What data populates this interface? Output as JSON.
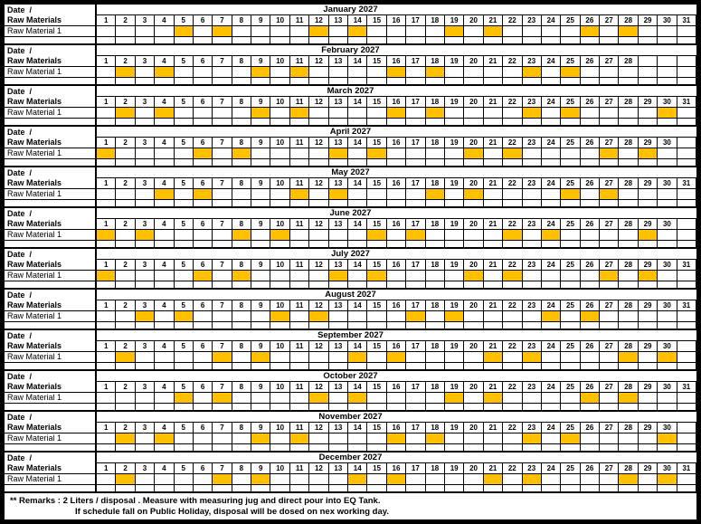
{
  "highlight_color": "#FFC000",
  "labels": {
    "date_label": "Date  /",
    "raw_materials_label": "Raw Materials",
    "material_row_label": "Raw Material 1"
  },
  "day_numbers": [
    "1",
    "2",
    "3",
    "4",
    "5",
    "6",
    "7",
    "8",
    "9",
    "10",
    "11",
    "12",
    "13",
    "14",
    "15",
    "16",
    "17",
    "18",
    "19",
    "20",
    "21",
    "22",
    "23",
    "24",
    "25",
    "26",
    "27",
    "28",
    "29",
    "30",
    "31"
  ],
  "months": [
    {
      "name": "January 2027",
      "days": 31,
      "highlighted": [
        5,
        7,
        12,
        14,
        19,
        21,
        26,
        28
      ]
    },
    {
      "name": "February 2027",
      "days": 28,
      "highlighted": [
        2,
        4,
        9,
        11,
        16,
        18,
        23,
        25
      ]
    },
    {
      "name": "March 2027",
      "days": 31,
      "highlighted": [
        2,
        4,
        9,
        11,
        16,
        18,
        23,
        25,
        30
      ]
    },
    {
      "name": "April 2027",
      "days": 30,
      "highlighted": [
        1,
        6,
        8,
        13,
        15,
        20,
        22,
        27,
        29
      ]
    },
    {
      "name": "May 2027",
      "days": 31,
      "highlighted": [
        4,
        6,
        11,
        13,
        18,
        20,
        25,
        27
      ]
    },
    {
      "name": "June 2027",
      "days": 30,
      "highlighted": [
        1,
        3,
        8,
        10,
        15,
        17,
        22,
        24,
        29
      ]
    },
    {
      "name": "July 2027",
      "days": 31,
      "highlighted": [
        1,
        6,
        8,
        13,
        15,
        20,
        22,
        27,
        29
      ]
    },
    {
      "name": "August 2027",
      "days": 31,
      "highlighted": [
        3,
        5,
        10,
        12,
        17,
        19,
        24,
        26
      ]
    },
    {
      "name": "September 2027",
      "days": 30,
      "highlighted": [
        2,
        7,
        9,
        14,
        16,
        21,
        23,
        28,
        30
      ]
    },
    {
      "name": "October 2027",
      "days": 31,
      "highlighted": [
        5,
        7,
        12,
        14,
        19,
        21,
        26,
        28
      ]
    },
    {
      "name": "November 2027",
      "days": 30,
      "highlighted": [
        2,
        4,
        9,
        11,
        16,
        18,
        23,
        25,
        30
      ]
    },
    {
      "name": "December 2027",
      "days": 31,
      "highlighted": [
        2,
        7,
        9,
        14,
        16,
        21,
        23,
        28,
        30
      ]
    }
  ],
  "remarks": {
    "line1": "** Remarks : 2 Liters / disposal . Measure with measuring jug and direct pour into EQ Tank.",
    "line2": "If schedule fall on Public Holiday, disposal will be dosed on nex working day."
  }
}
